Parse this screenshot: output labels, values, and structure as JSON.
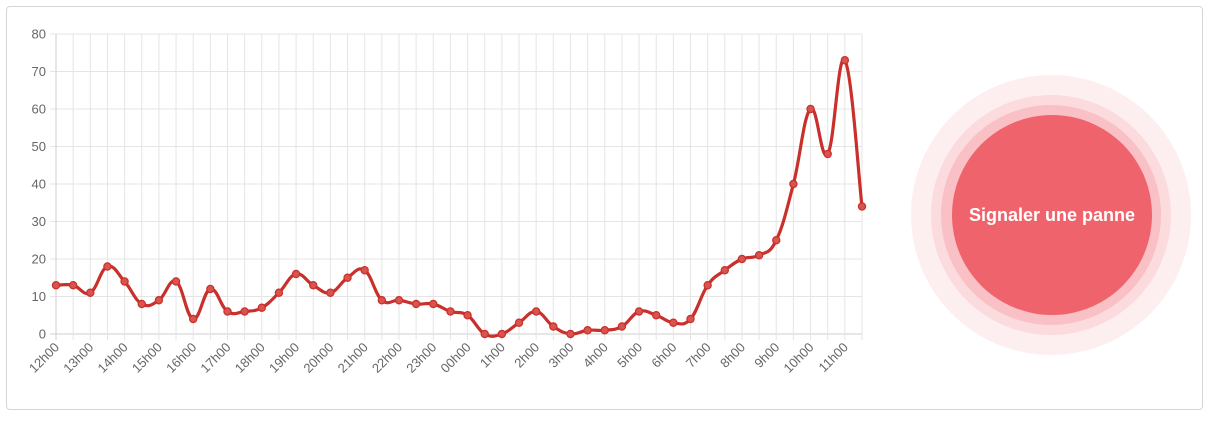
{
  "report_button": {
    "label": "Signaler une panne"
  },
  "colors": {
    "line": "#c9302c",
    "button": "#ef646c",
    "grid": "#e5e5e5"
  },
  "chart_data": {
    "type": "line",
    "title": "",
    "xlabel": "",
    "ylabel": "",
    "ylim": [
      0,
      80
    ],
    "yticks": [
      0,
      10,
      20,
      30,
      40,
      50,
      60,
      70,
      80
    ],
    "grid": true,
    "tick_labels": [
      "12h00",
      "13h00",
      "14h00",
      "15h00",
      "16h00",
      "17h00",
      "18h00",
      "19h00",
      "20h00",
      "21h00",
      "22h00",
      "23h00",
      "00h00",
      "1h00",
      "2h00",
      "3h00",
      "4h00",
      "5h00",
      "6h00",
      "7h00",
      "8h00",
      "9h00",
      "10h00",
      "11h00"
    ],
    "series": [
      {
        "values": [
          13,
          13,
          11,
          18,
          14,
          8,
          9,
          14,
          4,
          12,
          6,
          6,
          7,
          11,
          16,
          13,
          11,
          15,
          17,
          9,
          9,
          8,
          8,
          6,
          5,
          0,
          0,
          3,
          6,
          2,
          0,
          1,
          1,
          2,
          6,
          5,
          3,
          4,
          13,
          17,
          20,
          21,
          25,
          40,
          60,
          48,
          73,
          34
        ]
      }
    ]
  }
}
